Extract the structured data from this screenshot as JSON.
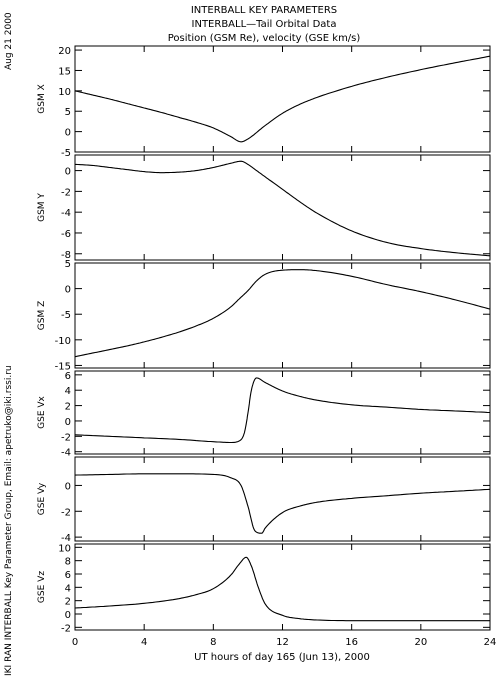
{
  "title_lines": [
    "INTERBALL KEY PARAMETERS",
    "INTERBALL—Tail Orbital Data",
    "Position (GSM Re), velocity (GSE km/s)"
  ],
  "side_date": "Aug 21 2000",
  "side_credit": "IKI RAN INTERBALL Key Parameter Group, Email: apetruko@iki.rssi.ru",
  "xlabel": "UT hours of day 165 (Jun 13), 2000",
  "chart_data": [
    {
      "type": "line",
      "ylabel": "GSM X",
      "xlim": [
        0,
        24
      ],
      "ylim": [
        -5,
        21
      ],
      "yticks": [
        -5,
        0,
        5,
        10,
        15,
        20
      ],
      "x": [
        0,
        1,
        2,
        3,
        4,
        5,
        6,
        7,
        8,
        9,
        9.6,
        10,
        11,
        12,
        13,
        14,
        16,
        18,
        20,
        22,
        24
      ],
      "series": [
        {
          "values": [
            10,
            9,
            8,
            6.9,
            5.8,
            4.7,
            3.5,
            2.3,
            0.9,
            -1.2,
            -2.5,
            -1.8,
            1.5,
            4.5,
            6.7,
            8.4,
            11.1,
            13.3,
            15.2,
            16.9,
            18.5
          ]
        }
      ]
    },
    {
      "type": "line",
      "ylabel": "GSM Y",
      "xlim": [
        0,
        24
      ],
      "ylim": [
        -8.6,
        1.5
      ],
      "yticks": [
        -8,
        -6,
        -4,
        -2,
        0
      ],
      "x": [
        0,
        1,
        2,
        3,
        4,
        5,
        6,
        7,
        8,
        9,
        9.6,
        10,
        10.5,
        11,
        12,
        13,
        14,
        16,
        18,
        20,
        22,
        24
      ],
      "series": [
        {
          "values": [
            0.6,
            0.5,
            0.3,
            0.1,
            -0.1,
            -0.2,
            -0.15,
            0.0,
            0.3,
            0.7,
            0.9,
            0.6,
            0.0,
            -0.6,
            -1.8,
            -3.0,
            -4.1,
            -5.8,
            -6.9,
            -7.5,
            -7.9,
            -8.2
          ]
        }
      ]
    },
    {
      "type": "line",
      "ylabel": "GSM Z",
      "xlim": [
        0,
        24
      ],
      "ylim": [
        -15.5,
        5
      ],
      "yticks": [
        -15,
        -10,
        -5,
        0,
        5
      ],
      "x": [
        0,
        1,
        2,
        3,
        4,
        5,
        6,
        7,
        8,
        9,
        9.5,
        10,
        10.5,
        11,
        12,
        13,
        14,
        16,
        18,
        20,
        22,
        24
      ],
      "series": [
        {
          "values": [
            -13.3,
            -12.6,
            -11.9,
            -11.2,
            -10.4,
            -9.5,
            -8.5,
            -7.3,
            -5.8,
            -3.6,
            -2.0,
            -0.4,
            1.5,
            2.8,
            3.6,
            3.7,
            3.5,
            2.4,
            0.8,
            -0.6,
            -2.2,
            -4.0
          ]
        }
      ]
    },
    {
      "type": "line",
      "ylabel": "GSE Vx",
      "xlim": [
        0,
        24
      ],
      "ylim": [
        -4.3,
        6.5
      ],
      "yticks": [
        -4,
        -2,
        0,
        2,
        4,
        6
      ],
      "x": [
        0,
        2,
        4,
        6,
        8,
        9,
        9.5,
        9.8,
        10,
        10.2,
        10.5,
        11,
        12,
        13,
        14,
        16,
        18,
        20,
        22,
        24
      ],
      "series": [
        {
          "values": [
            -1.8,
            -2.0,
            -2.2,
            -2.4,
            -2.7,
            -2.8,
            -2.6,
            -1.5,
            1.0,
            4.0,
            5.6,
            5.0,
            3.9,
            3.2,
            2.7,
            2.1,
            1.8,
            1.5,
            1.3,
            1.1
          ]
        }
      ]
    },
    {
      "type": "line",
      "ylabel": "GSE Vy",
      "xlim": [
        0,
        24
      ],
      "ylim": [
        -4.3,
        2.2
      ],
      "yticks": [
        -4,
        -2,
        0
      ],
      "x": [
        0,
        2,
        4,
        6,
        8,
        9,
        9.6,
        10,
        10.4,
        10.8,
        11,
        12,
        13,
        14,
        16,
        18,
        20,
        22,
        24
      ],
      "series": [
        {
          "values": [
            0.8,
            0.85,
            0.9,
            0.9,
            0.85,
            0.6,
            0.0,
            -1.6,
            -3.5,
            -3.7,
            -3.3,
            -2.1,
            -1.6,
            -1.3,
            -1.0,
            -0.8,
            -0.6,
            -0.45,
            -0.3
          ]
        }
      ]
    },
    {
      "type": "line",
      "ylabel": "GSE Vz",
      "xlim": [
        0,
        24
      ],
      "ylim": [
        -2.4,
        10.5
      ],
      "yticks": [
        -2,
        0,
        2,
        4,
        6,
        8,
        10
      ],
      "x": [
        0,
        2,
        4,
        6,
        7,
        8,
        9,
        9.5,
        9.9,
        10.2,
        10.6,
        11,
        12,
        13,
        14,
        16,
        18,
        20,
        22,
        24
      ],
      "series": [
        {
          "values": [
            0.9,
            1.2,
            1.6,
            2.3,
            2.9,
            3.8,
            5.8,
            7.5,
            8.5,
            7.2,
            4.0,
            1.5,
            -0.2,
            -0.7,
            -0.9,
            -1.0,
            -1.0,
            -1.0,
            -1.0,
            -1.0
          ]
        }
      ]
    }
  ]
}
